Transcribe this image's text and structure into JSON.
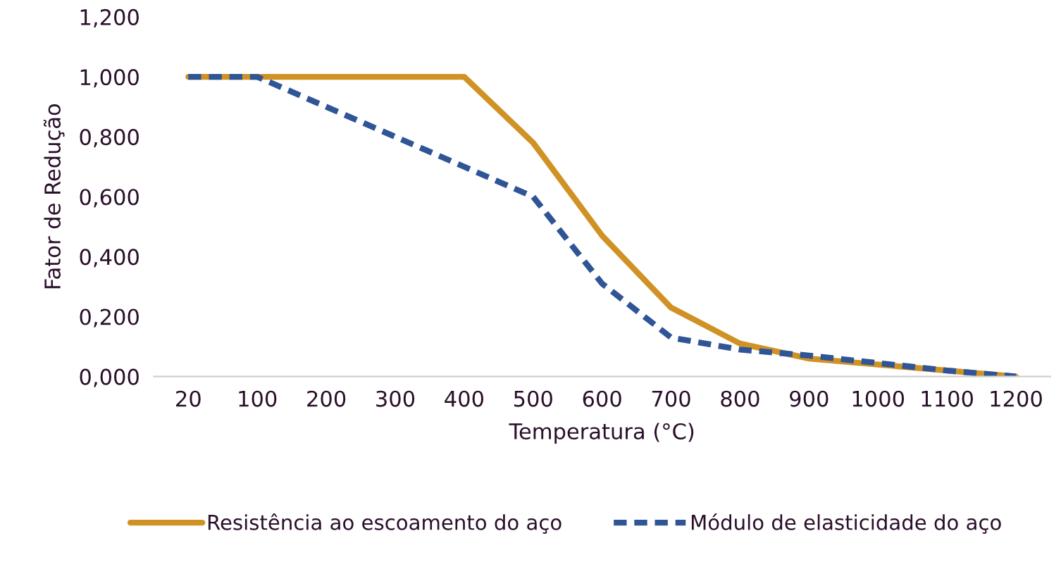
{
  "chart_data": {
    "type": "line",
    "xlabel": "Temperatura (°C)",
    "ylabel": "Fator de Redução",
    "categories": [
      "20",
      "100",
      "200",
      "300",
      "400",
      "500",
      "600",
      "700",
      "800",
      "900",
      "1000",
      "1100",
      "1200"
    ],
    "series": [
      {
        "name": "Resistência ao escoamento do aço",
        "color": "#d09224",
        "line_style": "solid",
        "values": [
          1.0,
          1.0,
          1.0,
          1.0,
          1.0,
          0.78,
          0.47,
          0.23,
          0.11,
          0.06,
          0.04,
          0.02,
          0.0
        ]
      },
      {
        "name": "Módulo de elasticidade do aço",
        "color": "#2f5597",
        "line_style": "dashed",
        "values": [
          1.0,
          1.0,
          0.9,
          0.8,
          0.7,
          0.6,
          0.31,
          0.13,
          0.09,
          0.07,
          0.045,
          0.02,
          0.0
        ]
      }
    ],
    "ylim": [
      0,
      1.2
    ],
    "yticks": [
      {
        "value": 0,
        "label": "0,000"
      },
      {
        "value": 0.2,
        "label": "0,200"
      },
      {
        "value": 0.4,
        "label": "0,400"
      },
      {
        "value": 0.6,
        "label": "0,600"
      },
      {
        "value": 0.8,
        "label": "0,800"
      },
      {
        "value": 1.0,
        "label": "1,000"
      },
      {
        "value": 1.2,
        "label": "1,200"
      }
    ],
    "grid": false,
    "legend": "bottom"
  }
}
